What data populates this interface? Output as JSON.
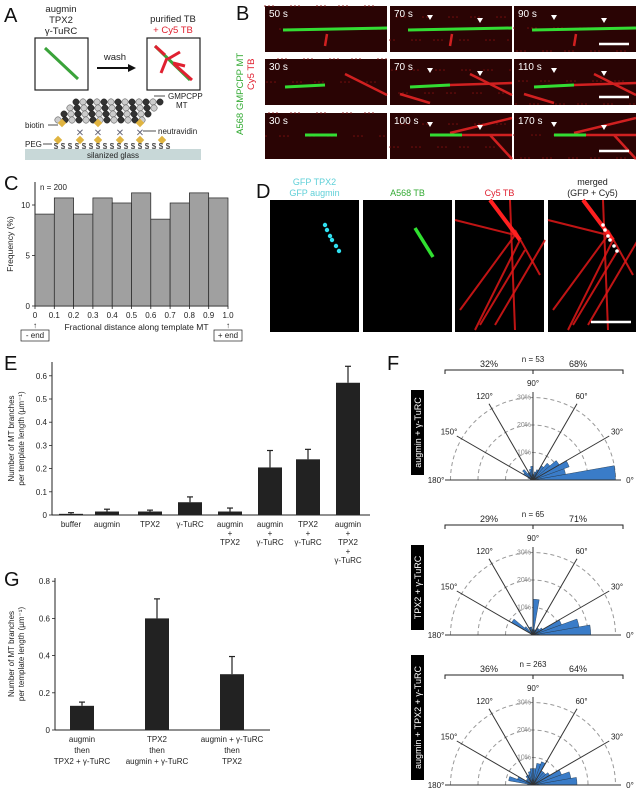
{
  "panels": {
    "A": {
      "letter": "A",
      "left_box_title": [
        "augmin",
        "TPX2",
        "γ-TuRC"
      ],
      "right_box_title": [
        "purified TB",
        "+ Cy5 TB"
      ],
      "arrow_label": "wash",
      "labels": {
        "mt": [
          "GMPCPP",
          "MT"
        ],
        "biotin": "biotin",
        "neutravidin": "neutravidin",
        "peg": "PEG",
        "glass": "silanized glass"
      },
      "colors": {
        "green": "#3aa33a",
        "red": "#e02030",
        "biotin": "#e0b440",
        "glass": "#c8d8d8"
      }
    },
    "B": {
      "letter": "B",
      "side_label_green": "A568 GMPCPP MT",
      "side_label_red": "Cy5 TB",
      "rows": [
        [
          "50 s",
          "70 s",
          "90 s"
        ],
        [
          "30 s",
          "70 s",
          "110 s"
        ],
        [
          "30 s",
          "100 s",
          "170 s"
        ]
      ]
    },
    "C": {
      "letter": "C"
    },
    "D": {
      "letter": "D",
      "channels": [
        {
          "lines": [
            "GFP TPX2",
            "GFP augmin"
          ],
          "color": "#5fd0d8"
        },
        {
          "lines": [
            "A568 TB"
          ],
          "color": "#33aa33"
        },
        {
          "lines": [
            "Cy5 TB"
          ],
          "color": "#e02030"
        },
        {
          "lines": [
            "merged",
            "(GFP + Cy5)"
          ],
          "color": "#222222"
        }
      ]
    },
    "E": {
      "letter": "E"
    },
    "F": {
      "letter": "F"
    },
    "G": {
      "letter": "G"
    }
  },
  "chart_data": [
    {
      "id": "C",
      "type": "bar",
      "annotation": "n = 200",
      "xlabel": "Fractional distance along template MT",
      "ylabel": "Frequency (%)",
      "x_ticks": [
        "0",
        "0.1",
        "0.2",
        "0.3",
        "0.4",
        "0.5",
        "0.6",
        "0.7",
        "0.8",
        "0.9",
        "1.0"
      ],
      "y_ticks": [
        "0",
        "5",
        "10"
      ],
      "ylim": [
        0,
        12
      ],
      "bin_edges": [
        0,
        0.1,
        0.2,
        0.3,
        0.4,
        0.5,
        0.6,
        0.7,
        0.8,
        0.9,
        1.0
      ],
      "values": [
        9.1,
        10.7,
        9.1,
        10.7,
        10.2,
        11.2,
        8.6,
        10.2,
        11.2,
        10.7
      ],
      "end_labels": [
        "- end",
        "+ end"
      ],
      "bar_color": "#a0a0a0"
    },
    {
      "id": "E",
      "type": "bar",
      "ylabel": [
        "Number of MT branches",
        "per template length (µm⁻¹)"
      ],
      "y_ticks": [
        "0",
        "0.1",
        "0.2",
        "0.3",
        "0.4",
        "0.5",
        "0.6"
      ],
      "ylim": [
        0,
        0.66
      ],
      "categories": [
        [
          "buffer"
        ],
        [
          "augmin"
        ],
        [
          "TPX2"
        ],
        [
          "γ-TuRC"
        ],
        [
          "augmin",
          "+",
          "TPX2"
        ],
        [
          "augmin",
          "+",
          "γ-TuRC"
        ],
        [
          "TPX2",
          "+",
          "γ-TuRC"
        ],
        [
          "augmin",
          "+",
          "TPX2",
          "+",
          "γ-TuRC"
        ]
      ],
      "values": [
        0.005,
        0.015,
        0.015,
        0.055,
        0.015,
        0.205,
        0.24,
        0.57
      ],
      "error": [
        0.005,
        0.01,
        0.006,
        0.023,
        0.015,
        0.073,
        0.043,
        0.071
      ],
      "bar_color": "#222222"
    },
    {
      "id": "F",
      "type": "polar-histogram",
      "bin_width_deg": 10,
      "angle_ticks": [
        "0°",
        "30°",
        "60°",
        "90°",
        "120°",
        "150°",
        "180°"
      ],
      "radial_ticks": [
        "10%",
        "20%",
        "30%"
      ],
      "bar_color": "#3a7cc8",
      "plots": [
        {
          "condition": "augmin + γ-TuRC",
          "n_label": "n = 53",
          "left_pct": "32%",
          "right_pct": "68%",
          "values": [
            30,
            12,
            14,
            11,
            8,
            6,
            4,
            3,
            2,
            5,
            4,
            3,
            3,
            5,
            4,
            2,
            1,
            0
          ]
        },
        {
          "condition": "TPX2 + γ-TuRC",
          "n_label": "n = 65",
          "left_pct": "29%",
          "right_pct": "71%",
          "values": [
            21,
            17,
            11,
            4,
            3,
            3,
            2,
            2,
            13,
            2,
            3,
            3,
            1,
            4,
            9,
            0,
            0,
            0
          ]
        },
        {
          "condition": "augmin + TPX2 + γ-TuRC",
          "n_label": "n = 263",
          "left_pct": "36%",
          "right_pct": "64%",
          "values": [
            16,
            14,
            11,
            7,
            6,
            6,
            9,
            8,
            6,
            6,
            5,
            4,
            4,
            3,
            3,
            6,
            9,
            2
          ]
        }
      ]
    },
    {
      "id": "G",
      "type": "bar",
      "ylabel": [
        "Number of MT branches",
        "per template length (µm⁻¹)"
      ],
      "y_ticks": [
        "0",
        "0.2",
        "0.4",
        "0.6",
        "0.8"
      ],
      "ylim": [
        0,
        0.8
      ],
      "categories": [
        [
          "augmin",
          "then",
          "TPX2 + γ-TuRC"
        ],
        [
          "TPX2",
          "then",
          "augmin + γ-TuRC"
        ],
        [
          "augmin + γ-TuRC",
          "then",
          "TPX2"
        ]
      ],
      "values": [
        0.13,
        0.6,
        0.3
      ],
      "error": [
        0.02,
        0.105,
        0.095
      ],
      "bar_color": "#222222"
    }
  ]
}
